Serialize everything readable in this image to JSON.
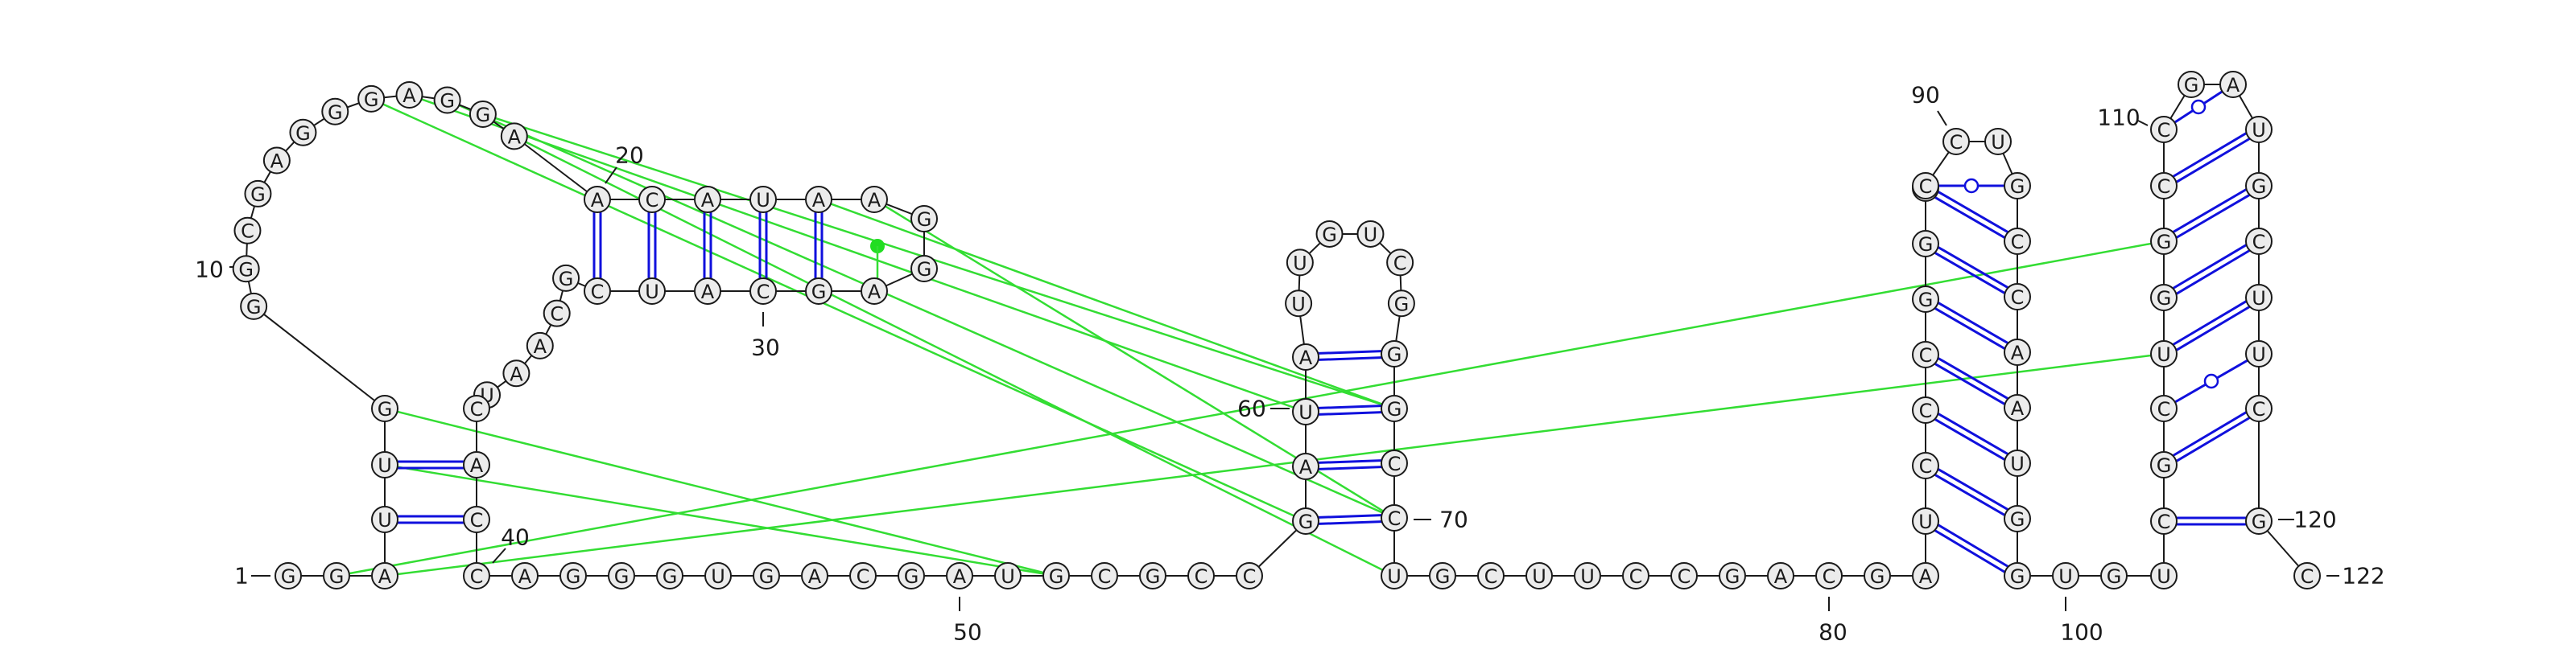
{
  "diagram": {
    "type": "rna-secondary-structure",
    "sequence": "GGAUUGGGCGAGGGAGGAACAUAAGGAGCAUCGCAAUCACCAGGGUGACGAUGCGCCGAUAUUGUCGGGCCUGCUUCCGACGAUCCCGGCCCUGCCAAUGGUGUCGCUGGCCGAUGCUUCGC",
    "labels": [
      "1",
      "10",
      "20",
      "30",
      "40",
      "50",
      "60",
      "70",
      "80",
      "90",
      "100",
      "110",
      "120",
      "122"
    ],
    "colors": {
      "base_pair": "#1010dd",
      "pseudoknot": "#33dd33",
      "nucleotide_fill": "#ececec",
      "outline": "#1a1a1a"
    }
  }
}
